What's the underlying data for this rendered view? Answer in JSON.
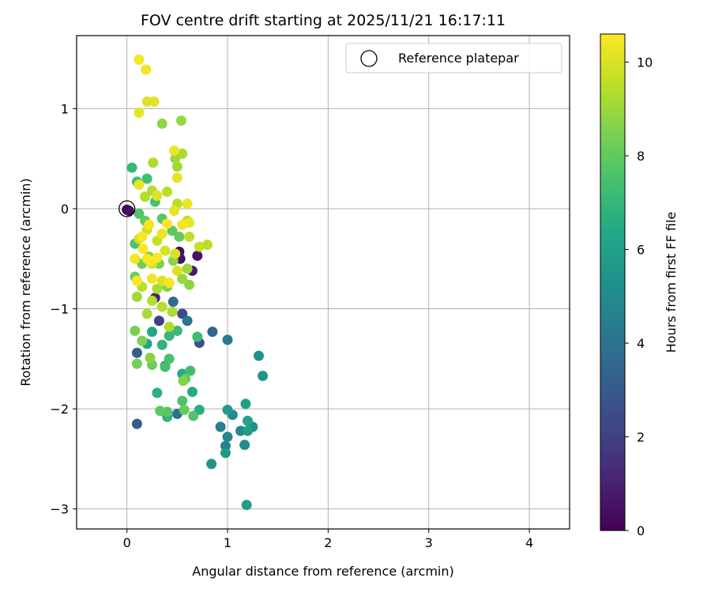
{
  "chart_data": {
    "type": "scatter",
    "title": "FOV centre drift starting at 2025/11/21 16:17:11",
    "xlabel": "Angular distance from reference (arcmin)",
    "ylabel": "Rotation from reference (arcmin)",
    "xlim": [
      -0.5,
      4.4
    ],
    "ylim": [
      -3.2,
      1.73
    ],
    "xticks": [
      0,
      1,
      2,
      3,
      4
    ],
    "yticks": [
      -3,
      -2,
      -1,
      0,
      1
    ],
    "xtick_labels": [
      "0",
      "1",
      "2",
      "3",
      "4"
    ],
    "ytick_labels": [
      "−3",
      "−2",
      "−1",
      "0",
      "1"
    ],
    "grid": true,
    "colormap": "viridis",
    "colorbar": {
      "label": "Hours from first FF file",
      "range": [
        0,
        10.6
      ],
      "ticks": [
        0,
        2,
        4,
        6,
        8,
        10
      ],
      "tick_labels": [
        "0",
        "2",
        "4",
        "6",
        "8",
        "10"
      ]
    },
    "legend": {
      "location": "top-right",
      "entries": [
        "Reference platepar"
      ]
    },
    "reference_point": {
      "x": 0,
      "y": 0
    },
    "points": [
      {
        "x": 0.0,
        "y": -0.01,
        "c": 0.0
      },
      {
        "x": 0.02,
        "y": -0.02,
        "c": 0.3
      },
      {
        "x": 0.52,
        "y": -0.43,
        "c": 0.4
      },
      {
        "x": 0.53,
        "y": -0.5,
        "c": 0.5
      },
      {
        "x": 0.7,
        "y": -0.47,
        "c": 0.6
      },
      {
        "x": 0.65,
        "y": -0.62,
        "c": 0.8
      },
      {
        "x": 0.28,
        "y": -0.89,
        "c": 1.2
      },
      {
        "x": 0.32,
        "y": -1.12,
        "c": 2.0
      },
      {
        "x": 0.55,
        "y": -1.05,
        "c": 2.3
      },
      {
        "x": 0.72,
        "y": -1.34,
        "c": 2.6
      },
      {
        "x": 0.1,
        "y": -2.15,
        "c": 3.0
      },
      {
        "x": 0.1,
        "y": -1.44,
        "c": 3.2
      },
      {
        "x": 0.85,
        "y": -1.23,
        "c": 3.5
      },
      {
        "x": 0.46,
        "y": -0.93,
        "c": 3.6
      },
      {
        "x": 0.38,
        "y": -1.57,
        "c": 3.8
      },
      {
        "x": 0.5,
        "y": -2.05,
        "c": 4.0
      },
      {
        "x": 0.6,
        "y": -1.12,
        "c": 4.2
      },
      {
        "x": 1.0,
        "y": -1.31,
        "c": 4.3
      },
      {
        "x": 0.93,
        "y": -2.18,
        "c": 4.5
      },
      {
        "x": 0.98,
        "y": -2.37,
        "c": 4.6
      },
      {
        "x": 1.0,
        "y": -2.28,
        "c": 4.8
      },
      {
        "x": 1.13,
        "y": -2.22,
        "c": 4.9
      },
      {
        "x": 1.05,
        "y": -2.06,
        "c": 5.0
      },
      {
        "x": 1.17,
        "y": -2.36,
        "c": 5.1
      },
      {
        "x": 1.25,
        "y": -2.18,
        "c": 5.2
      },
      {
        "x": 1.31,
        "y": -1.47,
        "c": 5.3
      },
      {
        "x": 1.35,
        "y": -1.67,
        "c": 5.4
      },
      {
        "x": 0.84,
        "y": -2.55,
        "c": 5.5
      },
      {
        "x": 0.98,
        "y": -2.44,
        "c": 5.6
      },
      {
        "x": 1.0,
        "y": -2.01,
        "c": 5.7
      },
      {
        "x": 1.19,
        "y": -2.96,
        "c": 5.8
      },
      {
        "x": 1.2,
        "y": -2.22,
        "c": 5.9
      },
      {
        "x": 1.18,
        "y": -1.95,
        "c": 6.0
      },
      {
        "x": 1.2,
        "y": -2.12,
        "c": 6.1
      },
      {
        "x": 0.2,
        "y": -1.35,
        "c": 6.2
      },
      {
        "x": 0.25,
        "y": -1.23,
        "c": 6.3
      },
      {
        "x": 0.55,
        "y": -1.65,
        "c": 6.4
      },
      {
        "x": 0.65,
        "y": -1.83,
        "c": 6.5
      },
      {
        "x": 0.72,
        "y": -2.01,
        "c": 6.6
      },
      {
        "x": 0.3,
        "y": -1.84,
        "c": 6.7
      },
      {
        "x": 0.4,
        "y": -2.08,
        "c": 6.8
      },
      {
        "x": 0.35,
        "y": -1.36,
        "c": 6.9
      },
      {
        "x": 0.42,
        "y": -1.27,
        "c": 7.0
      },
      {
        "x": 0.5,
        "y": -1.22,
        "c": 7.1
      },
      {
        "x": 0.7,
        "y": -1.28,
        "c": 7.2
      },
      {
        "x": 0.63,
        "y": -1.62,
        "c": 7.3
      },
      {
        "x": 0.38,
        "y": -1.58,
        "c": 7.4
      },
      {
        "x": 0.42,
        "y": -1.5,
        "c": 7.5
      },
      {
        "x": 0.55,
        "y": -1.92,
        "c": 7.6
      },
      {
        "x": 0.66,
        "y": -2.07,
        "c": 7.7
      },
      {
        "x": 0.4,
        "y": -2.03,
        "c": 7.8
      },
      {
        "x": 0.33,
        "y": -2.02,
        "c": 7.9
      },
      {
        "x": 0.58,
        "y": -1.7,
        "c": 8.0
      },
      {
        "x": 0.57,
        "y": -2.01,
        "c": 8.1
      },
      {
        "x": 0.25,
        "y": -1.56,
        "c": 8.2
      },
      {
        "x": 0.1,
        "y": -1.55,
        "c": 8.3
      },
      {
        "x": 0.08,
        "y": -1.22,
        "c": 8.4
      },
      {
        "x": 0.15,
        "y": -1.32,
        "c": 8.5
      },
      {
        "x": 0.56,
        "y": -1.72,
        "c": 8.6
      },
      {
        "x": 0.23,
        "y": -1.49,
        "c": 8.7
      },
      {
        "x": 0.35,
        "y": 0.85,
        "c": 8.8
      },
      {
        "x": 0.54,
        "y": 0.88,
        "c": 8.9
      },
      {
        "x": 0.05,
        "y": 0.41,
        "c": 7.0
      },
      {
        "x": 0.1,
        "y": 0.27,
        "c": 7.2
      },
      {
        "x": 0.2,
        "y": 0.3,
        "c": 7.4
      },
      {
        "x": 0.28,
        "y": 0.07,
        "c": 7.5
      },
      {
        "x": 0.08,
        "y": -0.35,
        "c": 7.6
      },
      {
        "x": 0.12,
        "y": -0.05,
        "c": 7.7
      },
      {
        "x": 0.35,
        "y": -0.1,
        "c": 7.8
      },
      {
        "x": 0.45,
        "y": -0.22,
        "c": 7.9
      },
      {
        "x": 0.52,
        "y": -0.28,
        "c": 8.0
      },
      {
        "x": 0.18,
        "y": -0.12,
        "c": 8.1
      },
      {
        "x": 0.08,
        "y": -0.68,
        "c": 8.2
      },
      {
        "x": 0.15,
        "y": -0.55,
        "c": 8.3
      },
      {
        "x": 0.22,
        "y": -0.48,
        "c": 8.4
      },
      {
        "x": 0.32,
        "y": -0.55,
        "c": 8.5
      },
      {
        "x": 0.4,
        "y": -0.78,
        "c": 8.6
      },
      {
        "x": 0.46,
        "y": -0.52,
        "c": 8.7
      },
      {
        "x": 0.62,
        "y": -0.76,
        "c": 8.8
      },
      {
        "x": 0.55,
        "y": -0.7,
        "c": 8.9
      },
      {
        "x": 0.6,
        "y": -0.6,
        "c": 9.0
      },
      {
        "x": 0.1,
        "y": -0.88,
        "c": 9.1
      },
      {
        "x": 0.2,
        "y": -1.05,
        "c": 9.2
      },
      {
        "x": 0.3,
        "y": -0.8,
        "c": 9.2
      },
      {
        "x": 0.45,
        "y": -1.03,
        "c": 9.3
      },
      {
        "x": 0.42,
        "y": -1.18,
        "c": 9.3
      },
      {
        "x": 0.35,
        "y": -0.98,
        "c": 9.4
      },
      {
        "x": 0.25,
        "y": -0.92,
        "c": 9.4
      },
      {
        "x": 0.15,
        "y": -0.78,
        "c": 9.5
      },
      {
        "x": 0.48,
        "y": 0.5,
        "c": 9.0
      },
      {
        "x": 0.5,
        "y": 0.42,
        "c": 9.1
      },
      {
        "x": 0.55,
        "y": 0.55,
        "c": 9.2
      },
      {
        "x": 0.26,
        "y": 0.46,
        "c": 9.3
      },
      {
        "x": 0.18,
        "y": 0.12,
        "c": 9.4
      },
      {
        "x": 0.25,
        "y": 0.18,
        "c": 9.4
      },
      {
        "x": 0.4,
        "y": 0.17,
        "c": 9.5
      },
      {
        "x": 0.5,
        "y": 0.05,
        "c": 9.5
      },
      {
        "x": 0.6,
        "y": -0.12,
        "c": 9.6
      },
      {
        "x": 0.62,
        "y": -0.28,
        "c": 9.6
      },
      {
        "x": 0.72,
        "y": -0.38,
        "c": 9.7
      },
      {
        "x": 0.3,
        "y": -0.32,
        "c": 9.7
      },
      {
        "x": 0.12,
        "y": -0.3,
        "c": 9.8
      },
      {
        "x": 0.2,
        "y": -0.21,
        "c": 9.8
      },
      {
        "x": 0.25,
        "y": -0.55,
        "c": 9.9
      },
      {
        "x": 0.38,
        "y": -0.42,
        "c": 9.9
      },
      {
        "x": 0.5,
        "y": -0.62,
        "c": 10.0
      },
      {
        "x": 0.48,
        "y": -0.45,
        "c": 10.0
      },
      {
        "x": 0.35,
        "y": -0.72,
        "c": 10.0
      },
      {
        "x": 0.27,
        "y": 1.07,
        "c": 10.1
      },
      {
        "x": 0.2,
        "y": 1.07,
        "c": 10.1
      },
      {
        "x": 0.12,
        "y": 0.96,
        "c": 10.2
      },
      {
        "x": 0.12,
        "y": 1.49,
        "c": 10.5
      },
      {
        "x": 0.19,
        "y": 1.39,
        "c": 10.4
      },
      {
        "x": 0.47,
        "y": 0.58,
        "c": 10.3
      },
      {
        "x": 0.5,
        "y": 0.31,
        "c": 10.2
      },
      {
        "x": 0.12,
        "y": 0.24,
        "c": 10.2
      },
      {
        "x": 0.3,
        "y": 0.13,
        "c": 10.1
      },
      {
        "x": 0.47,
        "y": -0.02,
        "c": 10.2
      },
      {
        "x": 0.6,
        "y": 0.05,
        "c": 10.3
      },
      {
        "x": 0.62,
        "y": -0.14,
        "c": 10.3
      },
      {
        "x": 0.35,
        "y": -0.25,
        "c": 10.3
      },
      {
        "x": 0.2,
        "y": -0.5,
        "c": 10.4
      },
      {
        "x": 0.08,
        "y": -0.5,
        "c": 10.4
      },
      {
        "x": 0.25,
        "y": -0.7,
        "c": 10.4
      },
      {
        "x": 0.42,
        "y": -0.74,
        "c": 10.5
      },
      {
        "x": 0.1,
        "y": -0.72,
        "c": 10.5
      },
      {
        "x": 0.15,
        "y": -0.28,
        "c": 10.5
      },
      {
        "x": 0.3,
        "y": -0.49,
        "c": 10.6
      },
      {
        "x": 0.55,
        "y": -0.16,
        "c": 10.4
      },
      {
        "x": 0.4,
        "y": -0.15,
        "c": 10.6
      },
      {
        "x": 0.22,
        "y": -0.16,
        "c": 10.5
      },
      {
        "x": 0.16,
        "y": -0.4,
        "c": 10.6
      },
      {
        "x": 0.8,
        "y": -0.36,
        "c": 9.5
      },
      {
        "x": 0.23,
        "y": -0.52,
        "c": 10.6
      }
    ]
  }
}
